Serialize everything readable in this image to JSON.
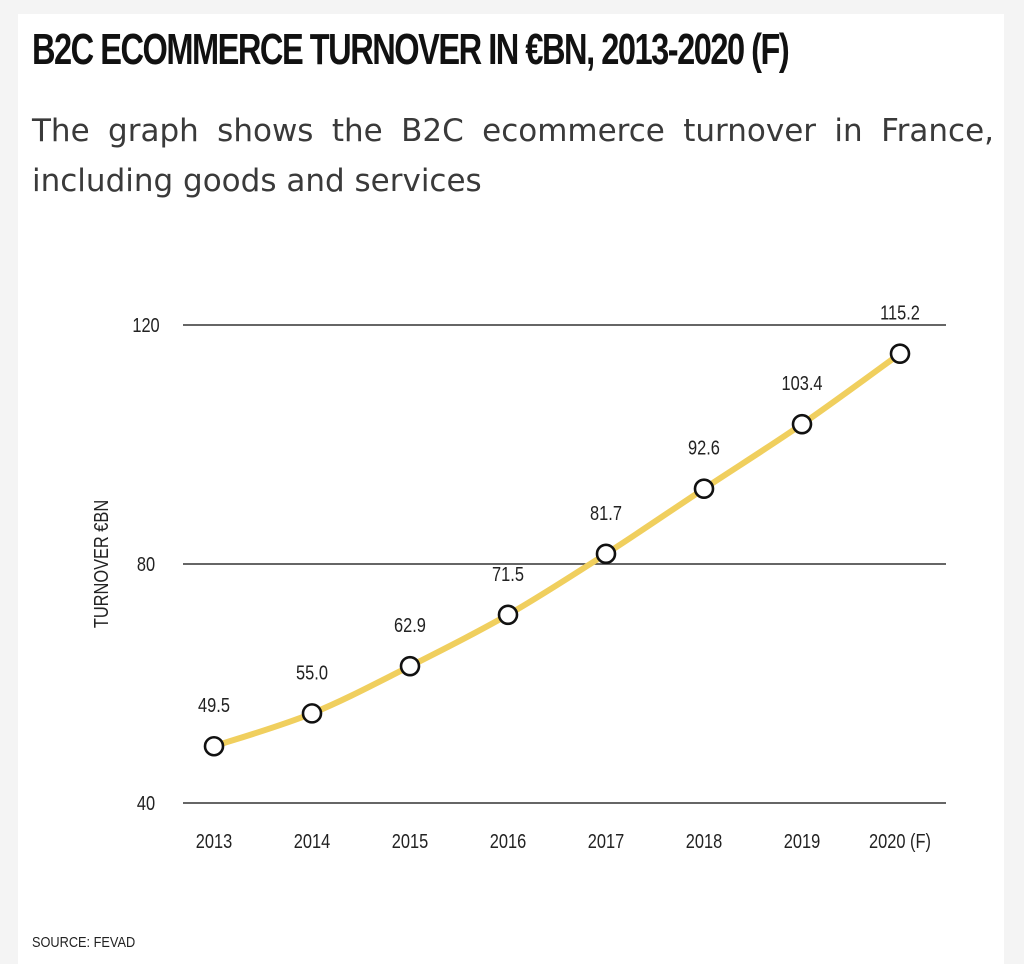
{
  "title": "B2C ECOMMERCE TURNOVER IN €BN, 2013-2020 (F)",
  "subtitle": "The graph shows the B2C ecommerce turnover in France, including goods and services",
  "source": "SOURCE: FEVAD",
  "colors": {
    "line": "#f0cf5e",
    "grid": "#333333",
    "marker_fill": "#ffffff",
    "marker_stroke": "#111111"
  },
  "chart_data": {
    "type": "line",
    "title": "B2C ECOMMERCE TURNOVER IN €BN, 2013-2020 (F)",
    "xlabel": "",
    "ylabel": "TURNOVER €BN",
    "ylim": [
      40,
      120
    ],
    "yticks": [
      "40",
      "80",
      "120"
    ],
    "grid": true,
    "legend": "none",
    "categories": [
      "2013",
      "2014",
      "2015",
      "2016",
      "2017",
      "2018",
      "2019",
      "2020 (F)"
    ],
    "values": [
      49.5,
      55.0,
      62.9,
      71.5,
      81.7,
      92.6,
      103.4,
      115.2
    ],
    "data_labels": [
      "49.5",
      "55.0",
      "62.9",
      "71.5",
      "81.7",
      "92.6",
      "103.4",
      "115.2"
    ]
  }
}
